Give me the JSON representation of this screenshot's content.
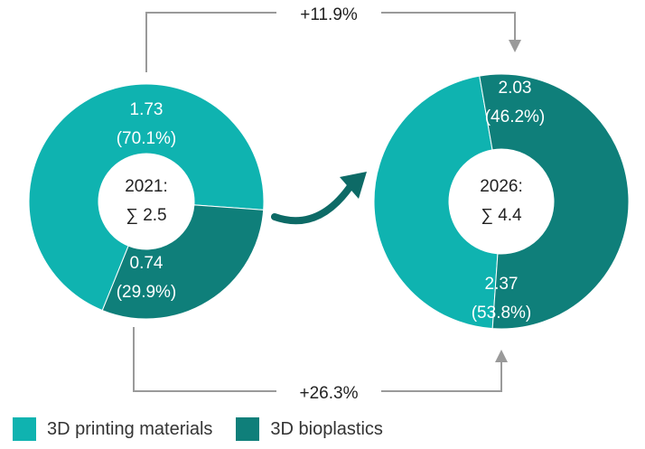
{
  "chart_data": [
    {
      "type": "pie",
      "variant": "donut",
      "center_lines": [
        "2021:",
        "∑ 2.5"
      ],
      "slices": [
        {
          "series": "3D printing materials",
          "value": 1.73,
          "value_label": "1.73",
          "percent_label": "(70.1%)",
          "percent": 70.1
        },
        {
          "series": "3D bioplastics",
          "value": 0.74,
          "value_label": "0.74",
          "percent_label": "(29.9%)",
          "percent": 29.9
        }
      ]
    },
    {
      "type": "pie",
      "variant": "donut",
      "center_lines": [
        "2026:",
        "∑ 4.4"
      ],
      "slices": [
        {
          "series": "3D printing materials",
          "value": 2.03,
          "value_label": "2.03",
          "percent_label": "(46.2%)",
          "percent": 46.2
        },
        {
          "series": "3D bioplastics",
          "value": 2.37,
          "value_label": "2.37",
          "percent_label": "(53.8%)",
          "percent": 53.8
        }
      ]
    }
  ],
  "growth": {
    "top_label": "+11.9%",
    "bottom_label": "+26.3%"
  },
  "legend": [
    {
      "label": "3D printing materials",
      "color": "#0fb3b0"
    },
    {
      "label": "3D bioplastics",
      "color": "#0f7f7a"
    }
  ],
  "colors": {
    "printing": "#0fb3b0",
    "bioplastics": "#0f7f7a",
    "connector": "#9a9a9a",
    "trend_arrow": "#0d6a66"
  }
}
